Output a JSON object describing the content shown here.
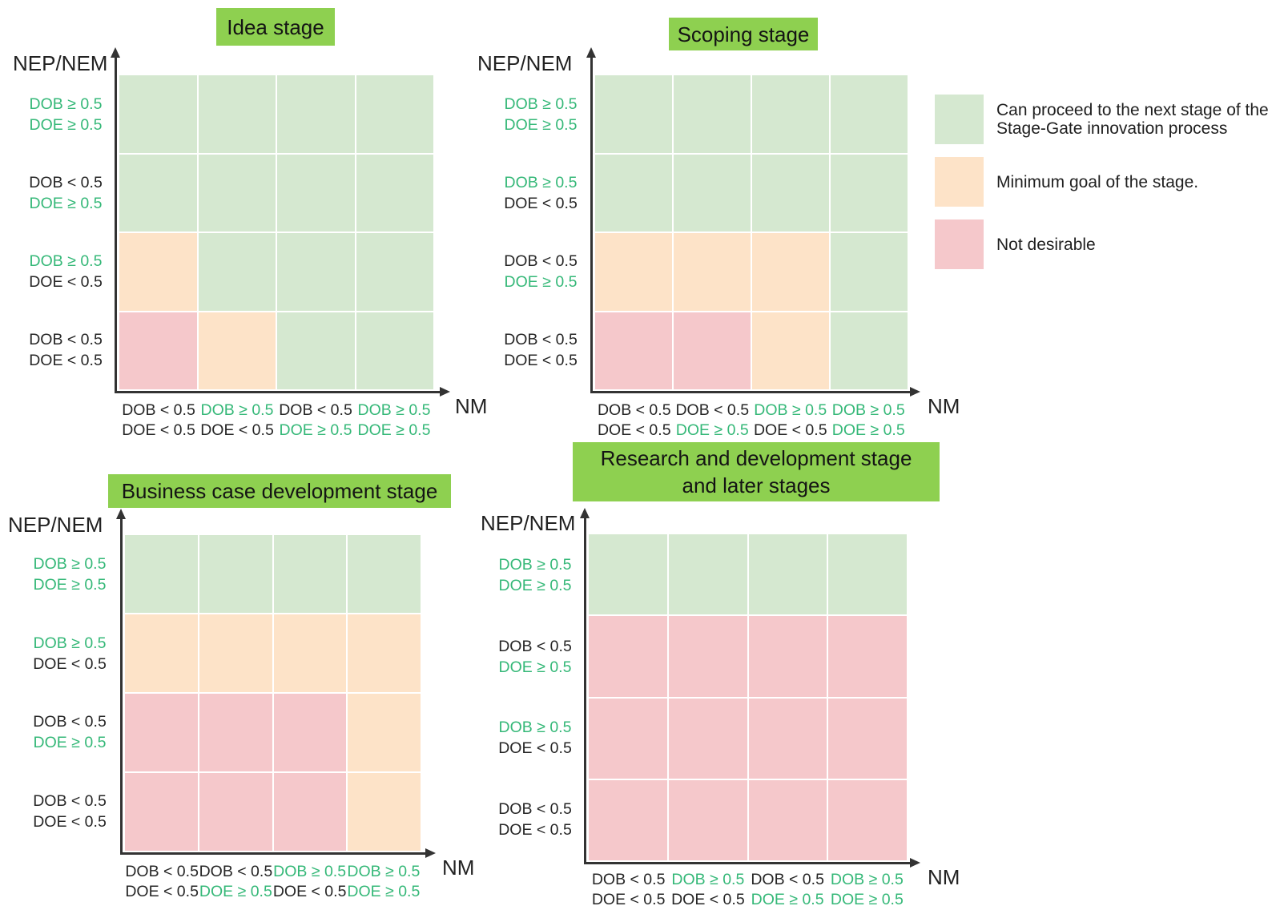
{
  "colors": {
    "cell_green": "#d5e8d0",
    "cell_orange": "#fde3c8",
    "cell_pink": "#f5c8cb",
    "stage_title_bg": "#8ed050",
    "label_green": "#35b878",
    "label_dark": "#262626",
    "axis_color": "#333333"
  },
  "axes": {
    "y_label": "NEP/NEM",
    "x_label": "NM"
  },
  "cell_states": {
    "g": "can_proceed",
    "o": "minimum_goal",
    "p": "not_desirable"
  },
  "legend": {
    "items": [
      {
        "state": "g",
        "lines": [
          "Can proceed to the next stage of the",
          "Stage-Gate innovation process"
        ]
      },
      {
        "state": "o",
        "lines": [
          "Minimum goal of the stage."
        ]
      },
      {
        "state": "p",
        "lines": [
          "Not desirable"
        ]
      }
    ]
  },
  "chart_data": [
    {
      "type": "heatmap",
      "title_lines": [
        "Idea stage"
      ],
      "rows": [
        {
          "lines": [
            {
              "text": "DOB ≥ 0.5",
              "tone": "green"
            },
            {
              "text": "DOE ≥ 0.5",
              "tone": "green"
            }
          ]
        },
        {
          "lines": [
            {
              "text": "DOB < 0.5",
              "tone": "dark"
            },
            {
              "text": "DOE ≥ 0.5",
              "tone": "green"
            }
          ]
        },
        {
          "lines": [
            {
              "text": "DOB ≥ 0.5",
              "tone": "green"
            },
            {
              "text": "DOE < 0.5",
              "tone": "dark"
            }
          ]
        },
        {
          "lines": [
            {
              "text": "DOB < 0.5",
              "tone": "dark"
            },
            {
              "text": "DOE < 0.5",
              "tone": "dark"
            }
          ]
        }
      ],
      "cols": [
        {
          "lines": [
            {
              "text": "DOB < 0.5",
              "tone": "dark"
            },
            {
              "text": "DOE < 0.5",
              "tone": "dark"
            }
          ]
        },
        {
          "lines": [
            {
              "text": "DOB ≥ 0.5",
              "tone": "green"
            },
            {
              "text": "DOE < 0.5",
              "tone": "dark"
            }
          ]
        },
        {
          "lines": [
            {
              "text": "DOB < 0.5",
              "tone": "dark"
            },
            {
              "text": "DOE ≥ 0.5",
              "tone": "green"
            }
          ]
        },
        {
          "lines": [
            {
              "text": "DOB ≥ 0.5",
              "tone": "green"
            },
            {
              "text": "DOE ≥ 0.5",
              "tone": "green"
            }
          ]
        }
      ],
      "cells": [
        [
          "g",
          "g",
          "g",
          "g"
        ],
        [
          "g",
          "g",
          "g",
          "g"
        ],
        [
          "o",
          "g",
          "g",
          "g"
        ],
        [
          "p",
          "o",
          "g",
          "g"
        ]
      ]
    },
    {
      "type": "heatmap",
      "title_lines": [
        "Scoping stage"
      ],
      "rows": [
        {
          "lines": [
            {
              "text": "DOB ≥ 0.5",
              "tone": "green"
            },
            {
              "text": "DOE ≥ 0.5",
              "tone": "green"
            }
          ]
        },
        {
          "lines": [
            {
              "text": "DOB ≥ 0.5",
              "tone": "green"
            },
            {
              "text": "DOE < 0.5",
              "tone": "dark"
            }
          ]
        },
        {
          "lines": [
            {
              "text": "DOB < 0.5",
              "tone": "dark"
            },
            {
              "text": "DOE ≥ 0.5",
              "tone": "green"
            }
          ]
        },
        {
          "lines": [
            {
              "text": "DOB < 0.5",
              "tone": "dark"
            },
            {
              "text": "DOE < 0.5",
              "tone": "dark"
            }
          ]
        }
      ],
      "cols": [
        {
          "lines": [
            {
              "text": "DOB < 0.5",
              "tone": "dark"
            },
            {
              "text": "DOE < 0.5",
              "tone": "dark"
            }
          ]
        },
        {
          "lines": [
            {
              "text": "DOB < 0.5",
              "tone": "dark"
            },
            {
              "text": "DOE ≥ 0.5",
              "tone": "green"
            }
          ]
        },
        {
          "lines": [
            {
              "text": "DOB ≥ 0.5",
              "tone": "green"
            },
            {
              "text": "DOE < 0.5",
              "tone": "dark"
            }
          ]
        },
        {
          "lines": [
            {
              "text": "DOB ≥ 0.5",
              "tone": "green"
            },
            {
              "text": "DOE ≥ 0.5",
              "tone": "green"
            }
          ]
        }
      ],
      "cells": [
        [
          "g",
          "g",
          "g",
          "g"
        ],
        [
          "g",
          "g",
          "g",
          "g"
        ],
        [
          "o",
          "o",
          "o",
          "g"
        ],
        [
          "p",
          "p",
          "o",
          "g"
        ]
      ]
    },
    {
      "type": "heatmap",
      "title_lines": [
        "Business case development stage"
      ],
      "rows": [
        {
          "lines": [
            {
              "text": "DOB ≥ 0.5",
              "tone": "green"
            },
            {
              "text": "DOE ≥ 0.5",
              "tone": "green"
            }
          ]
        },
        {
          "lines": [
            {
              "text": "DOB ≥ 0.5",
              "tone": "green"
            },
            {
              "text": "DOE < 0.5",
              "tone": "dark"
            }
          ]
        },
        {
          "lines": [
            {
              "text": "DOB < 0.5",
              "tone": "dark"
            },
            {
              "text": "DOE ≥ 0.5",
              "tone": "green"
            }
          ]
        },
        {
          "lines": [
            {
              "text": "DOB < 0.5",
              "tone": "dark"
            },
            {
              "text": "DOE < 0.5",
              "tone": "dark"
            }
          ]
        }
      ],
      "cols": [
        {
          "lines": [
            {
              "text": "DOB < 0.5",
              "tone": "dark"
            },
            {
              "text": "DOE < 0.5",
              "tone": "dark"
            }
          ]
        },
        {
          "lines": [
            {
              "text": "DOB < 0.5",
              "tone": "dark"
            },
            {
              "text": "DOE ≥ 0.5",
              "tone": "green"
            }
          ]
        },
        {
          "lines": [
            {
              "text": "DOB ≥ 0.5",
              "tone": "green"
            },
            {
              "text": "DOE < 0.5",
              "tone": "dark"
            }
          ]
        },
        {
          "lines": [
            {
              "text": "DOB ≥ 0.5",
              "tone": "green"
            },
            {
              "text": "DOE ≥ 0.5",
              "tone": "green"
            }
          ]
        }
      ],
      "cells": [
        [
          "g",
          "g",
          "g",
          "g"
        ],
        [
          "o",
          "o",
          "o",
          "o"
        ],
        [
          "p",
          "p",
          "p",
          "o"
        ],
        [
          "p",
          "p",
          "p",
          "o"
        ]
      ]
    },
    {
      "type": "heatmap",
      "title_lines": [
        "Research and development stage",
        "and later stages"
      ],
      "rows": [
        {
          "lines": [
            {
              "text": "DOB ≥ 0.5",
              "tone": "green"
            },
            {
              "text": "DOE ≥ 0.5",
              "tone": "green"
            }
          ]
        },
        {
          "lines": [
            {
              "text": "DOB < 0.5",
              "tone": "dark"
            },
            {
              "text": "DOE ≥ 0.5",
              "tone": "green"
            }
          ]
        },
        {
          "lines": [
            {
              "text": "DOB ≥ 0.5",
              "tone": "green"
            },
            {
              "text": "DOE < 0.5",
              "tone": "dark"
            }
          ]
        },
        {
          "lines": [
            {
              "text": "DOB < 0.5",
              "tone": "dark"
            },
            {
              "text": "DOE < 0.5",
              "tone": "dark"
            }
          ]
        }
      ],
      "cols": [
        {
          "lines": [
            {
              "text": "DOB < 0.5",
              "tone": "dark"
            },
            {
              "text": "DOE < 0.5",
              "tone": "dark"
            }
          ]
        },
        {
          "lines": [
            {
              "text": "DOB ≥ 0.5",
              "tone": "green"
            },
            {
              "text": "DOE < 0.5",
              "tone": "dark"
            }
          ]
        },
        {
          "lines": [
            {
              "text": "DOB < 0.5",
              "tone": "dark"
            },
            {
              "text": "DOE ≥ 0.5",
              "tone": "green"
            }
          ]
        },
        {
          "lines": [
            {
              "text": "DOB ≥ 0.5",
              "tone": "green"
            },
            {
              "text": "DOE ≥ 0.5",
              "tone": "green"
            }
          ]
        }
      ],
      "cells": [
        [
          "g",
          "g",
          "g",
          "g"
        ],
        [
          "p",
          "p",
          "p",
          "p"
        ],
        [
          "p",
          "p",
          "p",
          "p"
        ],
        [
          "p",
          "p",
          "p",
          "p"
        ]
      ]
    }
  ]
}
